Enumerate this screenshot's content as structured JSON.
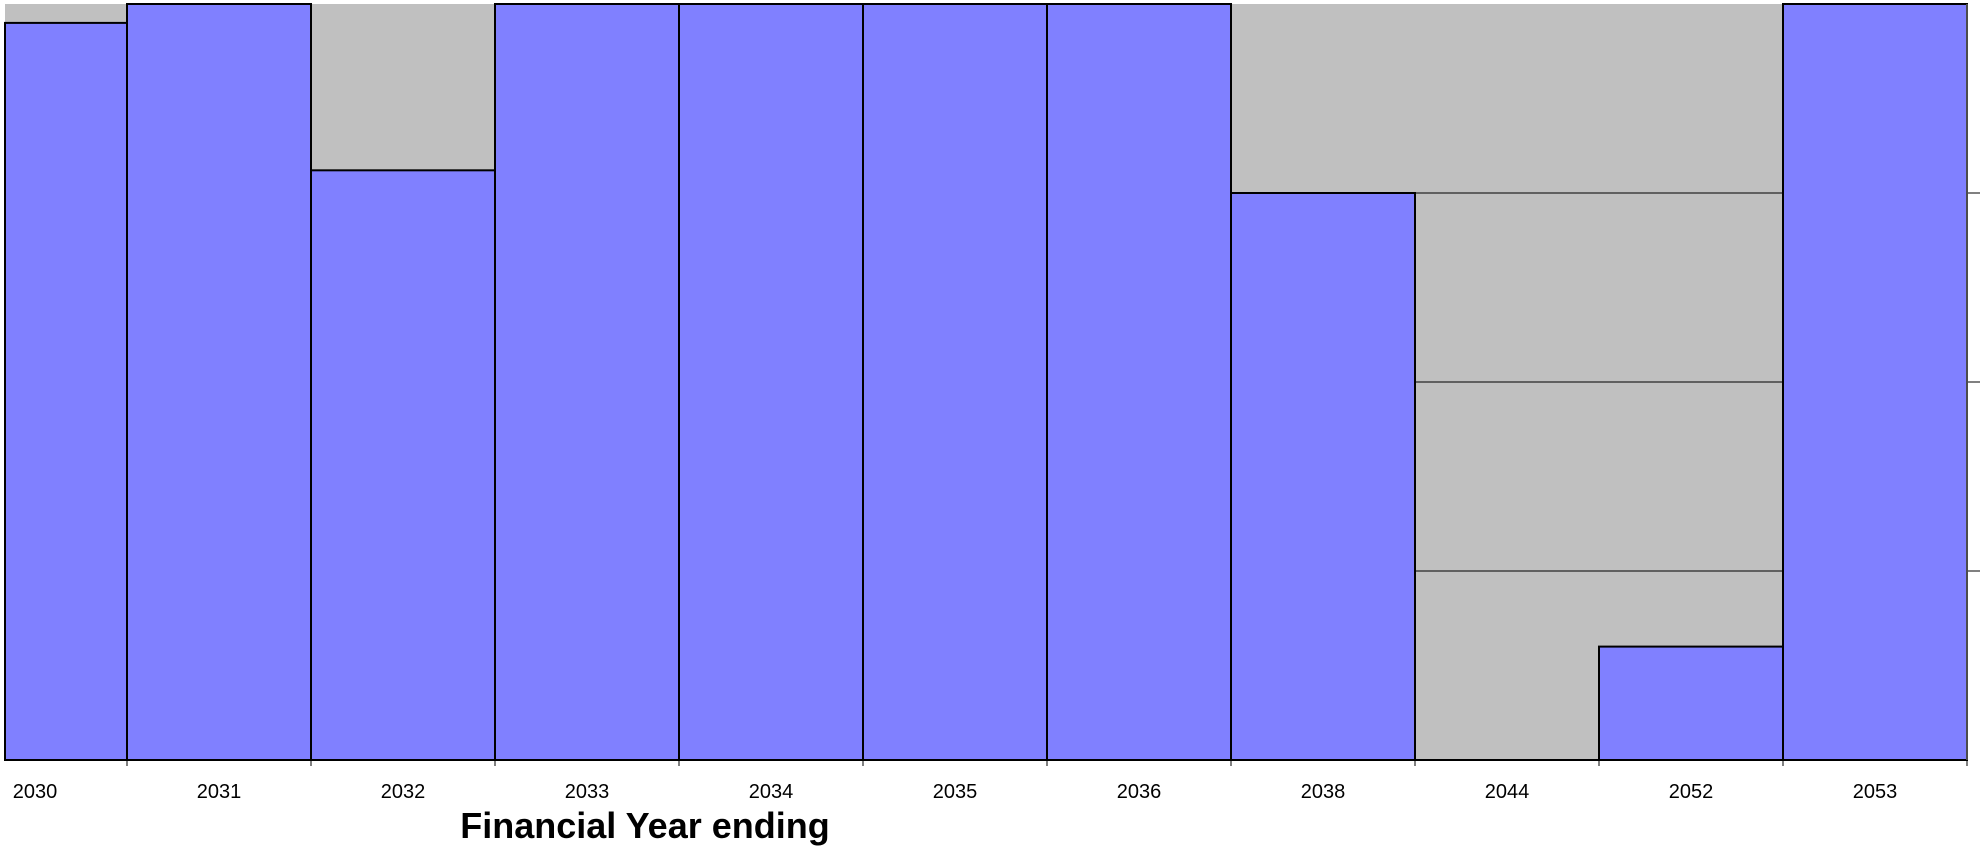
{
  "chart_data": {
    "type": "bar",
    "title": "",
    "xlabel": "Financial Year ending",
    "ylabel": "",
    "categories": [
      "2030",
      "2031",
      "2032",
      "2033",
      "2034",
      "2035",
      "2036",
      "2038",
      "2044",
      "2052",
      "2053"
    ],
    "series": [
      {
        "values": [
          0.975,
          1.0,
          0.78,
          1.0,
          1.0,
          1.0,
          1.0,
          0.75,
          0,
          0.15,
          1.0
        ]
      }
    ],
    "ylim": [
      0,
      1
    ],
    "grid": true,
    "legend": "none",
    "colors": {
      "bar": "#8080ff",
      "background": "#c0c0c0",
      "outline": "#000000"
    }
  }
}
